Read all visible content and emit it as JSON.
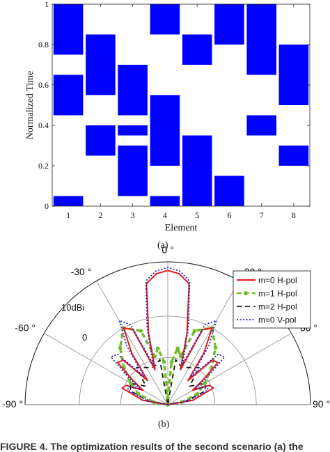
{
  "chart_data": [
    {
      "type": "bar",
      "subtype": "time-intervals",
      "xlabel": "Element",
      "ylabel": "Normalized Time",
      "xticks": [
        "1",
        "2",
        "3",
        "4",
        "5",
        "6",
        "7",
        "8"
      ],
      "yticks": [
        "0",
        "0.2",
        "0.4",
        "0.6",
        "0.8",
        "1"
      ],
      "xlim": [
        0.5,
        8.5
      ],
      "ylim": [
        0,
        1
      ],
      "bar_color": "#0000ff",
      "intervals": [
        {
          "element": 1,
          "start": 0.75,
          "end": 1.0
        },
        {
          "element": 1,
          "start": 0.45,
          "end": 0.65
        },
        {
          "element": 1,
          "start": 0.0,
          "end": 0.05
        },
        {
          "element": 2,
          "start": 0.55,
          "end": 0.85
        },
        {
          "element": 2,
          "start": 0.25,
          "end": 0.4
        },
        {
          "element": 3,
          "start": 0.45,
          "end": 0.7
        },
        {
          "element": 3,
          "start": 0.35,
          "end": 0.4
        },
        {
          "element": 3,
          "start": 0.05,
          "end": 0.3
        },
        {
          "element": 4,
          "start": 0.85,
          "end": 1.0
        },
        {
          "element": 4,
          "start": 0.2,
          "end": 0.55
        },
        {
          "element": 4,
          "start": 0.0,
          "end": 0.05
        },
        {
          "element": 5,
          "start": 0.7,
          "end": 0.85
        },
        {
          "element": 5,
          "start": 0.0,
          "end": 0.35
        },
        {
          "element": 6,
          "start": 0.8,
          "end": 1.0
        },
        {
          "element": 6,
          "start": 0.0,
          "end": 0.15
        },
        {
          "element": 7,
          "start": 0.65,
          "end": 1.0
        },
        {
          "element": 7,
          "start": 0.35,
          "end": 0.45
        },
        {
          "element": 8,
          "start": 0.5,
          "end": 0.8
        },
        {
          "element": 8,
          "start": 0.2,
          "end": 0.3
        }
      ],
      "caption": "(a)"
    },
    {
      "type": "line",
      "subtype": "polar-pattern",
      "angle_ticks": [
        "0 °",
        "30 °",
        "60 °",
        "90 °",
        "-90 °",
        "-60 °",
        "-30 °"
      ],
      "angle_tick_values": [
        0,
        30,
        60,
        90,
        -90,
        -60,
        -30
      ],
      "radial_ticks": [
        "10dBi",
        "0"
      ],
      "theta_range": [
        -90,
        90
      ],
      "legend_position": "top-right",
      "series": [
        {
          "name": "m=0 H-pol",
          "color": "#e8191c",
          "style": "solid",
          "theta": [
            -90,
            -80,
            -70,
            -65,
            -60,
            -55,
            -50,
            -45,
            -40,
            -35,
            -30,
            -25,
            -20,
            -15,
            -10,
            -5,
            0,
            5,
            10,
            15,
            20,
            25,
            30,
            35,
            40,
            45,
            50,
            55,
            60,
            65,
            70,
            80,
            90
          ],
          "r": [
            0,
            0.18,
            0.34,
            0.32,
            0.2,
            0.3,
            0.46,
            0.44,
            0.22,
            0.44,
            0.62,
            0.58,
            0.26,
            0.52,
            0.86,
            0.92,
            0.94,
            0.92,
            0.86,
            0.52,
            0.26,
            0.58,
            0.62,
            0.44,
            0.22,
            0.44,
            0.46,
            0.3,
            0.2,
            0.32,
            0.34,
            0.18,
            0
          ]
        },
        {
          "name": "m=1 H-pol",
          "color": "#6fbf2a",
          "style": "dash-dot-marker",
          "theta": [
            -90,
            -80,
            -70,
            -60,
            -50,
            -40,
            -30,
            -20,
            -15,
            -10,
            -5,
            0,
            5,
            10,
            15,
            20,
            30,
            40,
            50,
            60,
            70,
            80,
            90
          ],
          "r": [
            0.0,
            0.1,
            0.22,
            0.3,
            0.4,
            0.52,
            0.62,
            0.55,
            0.35,
            0.4,
            0.3,
            0.05,
            0.3,
            0.4,
            0.35,
            0.55,
            0.62,
            0.52,
            0.4,
            0.3,
            0.22,
            0.1,
            0.0
          ]
        },
        {
          "name": "m=2 H-pol",
          "color": "#111111",
          "style": "dashed",
          "theta": [
            -90,
            -80,
            -70,
            -60,
            -50,
            -40,
            -30,
            -20,
            -10,
            0,
            10,
            20,
            30,
            40,
            50,
            60,
            70,
            80,
            90
          ],
          "r": [
            0,
            0.12,
            0.28,
            0.3,
            0.2,
            0.34,
            0.3,
            0.28,
            0.32,
            0.0,
            0.32,
            0.28,
            0.3,
            0.34,
            0.2,
            0.3,
            0.28,
            0.12,
            0
          ]
        },
        {
          "name": "m=0 V-pol",
          "color": "#1f1fd0",
          "style": "dotted",
          "theta": [
            -90,
            -80,
            -70,
            -65,
            -60,
            -55,
            -50,
            -45,
            -40,
            -35,
            -30,
            -25,
            -20,
            -15,
            -10,
            -5,
            0,
            5,
            10,
            15,
            20,
            25,
            30,
            35,
            40,
            45,
            50,
            55,
            60,
            65,
            70,
            80,
            90
          ],
          "r": [
            0,
            0.14,
            0.3,
            0.3,
            0.22,
            0.34,
            0.52,
            0.5,
            0.26,
            0.5,
            0.68,
            0.62,
            0.3,
            0.56,
            0.88,
            0.94,
            0.96,
            0.94,
            0.88,
            0.56,
            0.3,
            0.62,
            0.68,
            0.5,
            0.26,
            0.5,
            0.52,
            0.34,
            0.22,
            0.3,
            0.3,
            0.14,
            0
          ]
        }
      ],
      "caption": "(b)"
    }
  ],
  "figure_caption": "FIGURE 4.  The optimization results of the second scenario (a) the"
}
